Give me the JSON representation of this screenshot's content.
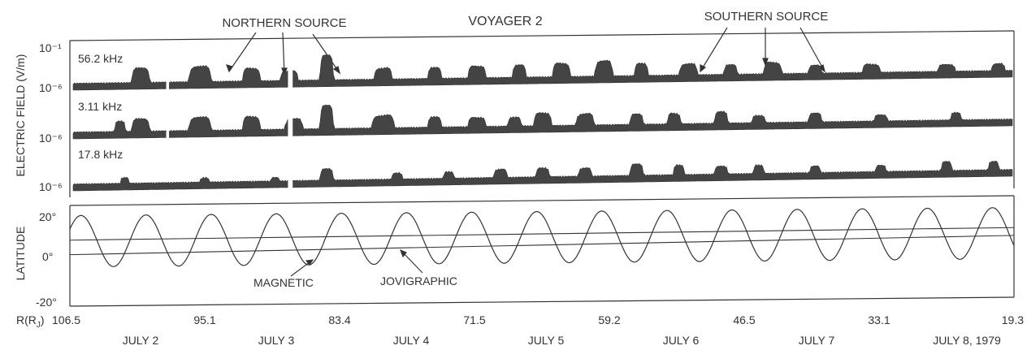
{
  "chart_data": [
    {
      "type": "area",
      "title": "VOYAGER 2",
      "ylabel": "ELECTRIC FIELD (V/m)",
      "annotations": [
        "NORTHERN SOURCE",
        "SOUTHERN SOURCE"
      ],
      "panels": [
        {
          "label": "56.2 kHz",
          "yticks": [
            "10⁻¹",
            "10⁻⁶"
          ],
          "baseline": "10⁻⁶",
          "bursts": [
            {
              "center": 0.072,
              "width": 0.02,
              "height": 0.55
            },
            {
              "center": 0.135,
              "width": 0.025,
              "height": 0.6
            },
            {
              "center": 0.19,
              "width": 0.02,
              "height": 0.5
            },
            {
              "center": 0.23,
              "width": 0.02,
              "height": 0.4
            },
            {
              "center": 0.27,
              "width": 0.015,
              "height": 0.9
            },
            {
              "center": 0.33,
              "width": 0.02,
              "height": 0.5
            },
            {
              "center": 0.385,
              "width": 0.015,
              "height": 0.4
            },
            {
              "center": 0.43,
              "width": 0.02,
              "height": 0.55
            },
            {
              "center": 0.475,
              "width": 0.015,
              "height": 0.45
            },
            {
              "center": 0.52,
              "width": 0.02,
              "height": 0.55
            },
            {
              "center": 0.565,
              "width": 0.02,
              "height": 0.6
            },
            {
              "center": 0.605,
              "width": 0.015,
              "height": 0.45
            },
            {
              "center": 0.655,
              "width": 0.02,
              "height": 0.5
            },
            {
              "center": 0.7,
              "width": 0.015,
              "height": 0.35
            },
            {
              "center": 0.745,
              "width": 0.02,
              "height": 0.5
            },
            {
              "center": 0.79,
              "width": 0.015,
              "height": 0.3
            },
            {
              "center": 0.85,
              "width": 0.02,
              "height": 0.35
            },
            {
              "center": 0.93,
              "width": 0.02,
              "height": 0.25
            },
            {
              "center": 0.985,
              "width": 0.015,
              "height": 0.3
            }
          ]
        },
        {
          "label": "3.11 kHz",
          "yticks": [
            "10⁻⁶"
          ],
          "baseline": "10⁻⁶",
          "bursts": [
            {
              "center": 0.05,
              "width": 0.012,
              "height": 0.4
            },
            {
              "center": 0.072,
              "width": 0.02,
              "height": 0.5
            },
            {
              "center": 0.135,
              "width": 0.025,
              "height": 0.55
            },
            {
              "center": 0.19,
              "width": 0.02,
              "height": 0.55
            },
            {
              "center": 0.235,
              "width": 0.02,
              "height": 0.45
            },
            {
              "center": 0.27,
              "width": 0.015,
              "height": 0.9
            },
            {
              "center": 0.33,
              "width": 0.025,
              "height": 0.6
            },
            {
              "center": 0.385,
              "width": 0.015,
              "height": 0.4
            },
            {
              "center": 0.43,
              "width": 0.02,
              "height": 0.45
            },
            {
              "center": 0.47,
              "width": 0.015,
              "height": 0.35
            },
            {
              "center": 0.5,
              "width": 0.02,
              "height": 0.5
            },
            {
              "center": 0.545,
              "width": 0.02,
              "height": 0.55
            },
            {
              "center": 0.6,
              "width": 0.015,
              "height": 0.4
            },
            {
              "center": 0.64,
              "width": 0.015,
              "height": 0.5
            },
            {
              "center": 0.69,
              "width": 0.015,
              "height": 0.45
            },
            {
              "center": 0.73,
              "width": 0.015,
              "height": 0.3
            },
            {
              "center": 0.79,
              "width": 0.015,
              "height": 0.35
            },
            {
              "center": 0.86,
              "width": 0.015,
              "height": 0.3
            },
            {
              "center": 0.94,
              "width": 0.012,
              "height": 0.3
            }
          ]
        },
        {
          "label": "17.8 kHz",
          "yticks": [
            "10⁻⁶"
          ],
          "baseline": "10⁻⁶",
          "bursts": [
            {
              "center": 0.055,
              "width": 0.01,
              "height": 0.25
            },
            {
              "center": 0.14,
              "width": 0.01,
              "height": 0.2
            },
            {
              "center": 0.215,
              "width": 0.01,
              "height": 0.2
            },
            {
              "center": 0.27,
              "width": 0.015,
              "height": 0.5
            },
            {
              "center": 0.345,
              "width": 0.012,
              "height": 0.3
            },
            {
              "center": 0.4,
              "width": 0.012,
              "height": 0.3
            },
            {
              "center": 0.455,
              "width": 0.015,
              "height": 0.4
            },
            {
              "center": 0.5,
              "width": 0.015,
              "height": 0.4
            },
            {
              "center": 0.545,
              "width": 0.015,
              "height": 0.45
            },
            {
              "center": 0.6,
              "width": 0.015,
              "height": 0.5
            },
            {
              "center": 0.645,
              "width": 0.012,
              "height": 0.55
            },
            {
              "center": 0.69,
              "width": 0.015,
              "height": 0.35
            },
            {
              "center": 0.73,
              "width": 0.012,
              "height": 0.4
            },
            {
              "center": 0.79,
              "width": 0.012,
              "height": 0.3
            },
            {
              "center": 0.86,
              "width": 0.012,
              "height": 0.35
            },
            {
              "center": 0.93,
              "width": 0.012,
              "height": 0.4
            },
            {
              "center": 0.98,
              "width": 0.012,
              "height": 0.45
            }
          ]
        }
      ]
    },
    {
      "type": "line",
      "ylabel": "LATITUDE",
      "yticks": [
        "20°",
        "0°",
        "-20°"
      ],
      "ylim": [
        -20,
        20
      ],
      "xlabel": "R (R_J)",
      "xlabel_text": "R(R",
      "xlabel_sub": "J",
      "xlabel_close": ")",
      "x_ticks": [
        "106.5",
        "95.1",
        "83.4",
        "71.5",
        "59.2",
        "46.5",
        "33.1",
        "19.3"
      ],
      "date_labels": [
        "JULY 2",
        "JULY 3",
        "JULY 4",
        "JULY 5",
        "JULY 6",
        "JULY 7",
        "JULY 8, 1979"
      ],
      "series": [
        {
          "name": "MAGNETIC",
          "kind": "sine",
          "offset_deg": 6.5,
          "amplitude_deg": 11.5,
          "cycles": 14.5,
          "phase_start": "max"
        },
        {
          "name": "JOVIGRAPHIC",
          "kind": "line",
          "values_deg": [
            7,
            9
          ]
        }
      ],
      "reference_lines": [
        {
          "start_deg": 0.5,
          "end_deg": 5.5
        }
      ]
    }
  ]
}
